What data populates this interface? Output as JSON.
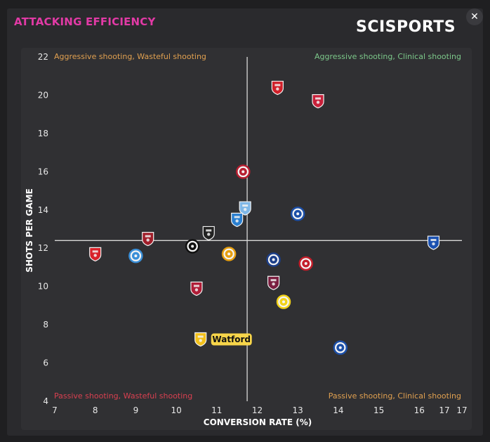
{
  "header": {
    "title": "ATTACKING EFFICIENCY",
    "brand": "SCISPORTS",
    "close_icon": "close-icon"
  },
  "colors": {
    "title": "#e23aa6",
    "quad_top_left": "#e0a050",
    "quad_top_right": "#7cc88a",
    "quad_bottom_left": "#d84050",
    "quad_bottom_right": "#e0a050",
    "highlight": "#f7d54a"
  },
  "chart_data": {
    "type": "scatter",
    "xlabel": "CONVERSION RATE (%)",
    "ylabel": "SHOTS PER GAME",
    "xlim": [
      7,
      17
    ],
    "ylim": [
      4,
      22
    ],
    "x_ticks": [
      "7",
      "8",
      "9",
      "10",
      "11",
      "12",
      "13",
      "14",
      "15",
      "16",
      "17",
      "17"
    ],
    "y_ticks": [
      "4",
      "6",
      "8",
      "10",
      "12",
      "14",
      "16",
      "18",
      "20",
      "22"
    ],
    "reference_lines": {
      "x": 11.75,
      "y": 12.4
    },
    "quadrants": {
      "top_left": "Aggressive shooting, Wasteful shooting",
      "top_right": "Aggressive shooting, Clinical shooting",
      "bottom_left": "Passive shooting, Wasteful shooting",
      "bottom_right": "Passive shooting, Clinical shooting"
    },
    "points": [
      {
        "x": 12.5,
        "y": 20.4,
        "shape": "shield",
        "color": "#d0202a"
      },
      {
        "x": 13.5,
        "y": 19.7,
        "shape": "shield",
        "color": "#c8203a"
      },
      {
        "x": 11.65,
        "y": 16.0,
        "shape": "circle",
        "color": "#b81e30"
      },
      {
        "x": 11.7,
        "y": 14.1,
        "shape": "shield",
        "color": "#7fb8e8"
      },
      {
        "x": 13.0,
        "y": 13.8,
        "shape": "circle",
        "color": "#1c4fa8"
      },
      {
        "x": 11.5,
        "y": 13.5,
        "shape": "shield",
        "color": "#2a7fd0"
      },
      {
        "x": 10.8,
        "y": 12.8,
        "shape": "shield",
        "color": "#222222"
      },
      {
        "x": 16.35,
        "y": 12.3,
        "shape": "shield",
        "color": "#1a50b0"
      },
      {
        "x": 9.3,
        "y": 12.5,
        "shape": "shield",
        "color": "#a01e2a"
      },
      {
        "x": 10.4,
        "y": 12.1,
        "shape": "circle",
        "color": "#101010"
      },
      {
        "x": 8.0,
        "y": 11.7,
        "shape": "shield",
        "color": "#d8222a"
      },
      {
        "x": 9.0,
        "y": 11.6,
        "shape": "circle",
        "color": "#3a8fd8"
      },
      {
        "x": 11.3,
        "y": 11.7,
        "shape": "circle",
        "color": "#e8a010"
      },
      {
        "x": 12.4,
        "y": 11.4,
        "shape": "circle",
        "color": "#1c3f8a"
      },
      {
        "x": 13.2,
        "y": 11.2,
        "shape": "circle",
        "color": "#c41e2a"
      },
      {
        "x": 10.5,
        "y": 9.9,
        "shape": "shield",
        "color": "#b01e38"
      },
      {
        "x": 12.4,
        "y": 10.2,
        "shape": "shield",
        "color": "#7a1e40"
      },
      {
        "x": 12.65,
        "y": 9.2,
        "shape": "circle",
        "color": "#f2d21a"
      },
      {
        "x": 14.05,
        "y": 6.8,
        "shape": "circle",
        "color": "#1c4fa8"
      },
      {
        "x": 10.6,
        "y": 7.25,
        "shape": "shield",
        "color": "#f2c01a",
        "label": "Watford",
        "highlight": true
      }
    ]
  }
}
